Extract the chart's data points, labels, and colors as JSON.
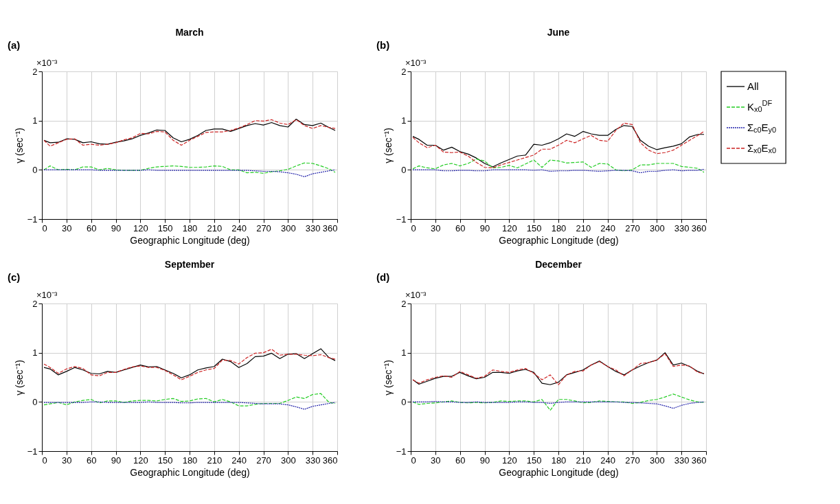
{
  "chart_data": [
    {
      "type": "line",
      "title": "March",
      "xlabel": "Geographic Longitude (deg)",
      "ylabel": "γ (sec⁻¹)",
      "annotations": [
        "(a)",
        "×10⁻³"
      ],
      "xlim": [
        0,
        360
      ],
      "xticks": [
        0,
        30,
        60,
        90,
        120,
        150,
        180,
        210,
        240,
        270,
        300,
        330,
        360
      ],
      "ylim": [
        -1,
        2
      ],
      "yticks": [
        -1,
        0,
        1,
        2
      ],
      "grid": true,
      "x": [
        2.5,
        10,
        20,
        30,
        40,
        50,
        60,
        70,
        80,
        90,
        100,
        110,
        120,
        130,
        140,
        150,
        160,
        170,
        180,
        190,
        200,
        210,
        220,
        230,
        240,
        250,
        260,
        270,
        280,
        290,
        300,
        310,
        320,
        330,
        340,
        350,
        357.5
      ],
      "series": [
        {
          "color": "#000000",
          "line_style": "solid",
          "values": [
            0.6,
            0.55,
            0.56,
            0.63,
            0.62,
            0.55,
            0.57,
            0.53,
            0.52,
            0.56,
            0.59,
            0.63,
            0.7,
            0.75,
            0.81,
            0.8,
            0.65,
            0.57,
            0.62,
            0.7,
            0.8,
            0.83,
            0.83,
            0.78,
            0.84,
            0.9,
            0.94,
            0.91,
            0.96,
            0.9,
            0.87,
            1.03,
            0.92,
            0.9,
            0.95,
            0.86,
            0.8
          ]
        },
        {
          "color": "#22cc22",
          "line_style": "dashed",
          "values": [
            0.0,
            0.08,
            0.0,
            0.01,
            0.0,
            0.06,
            0.06,
            0.0,
            0.03,
            0.0,
            -0.01,
            -0.01,
            -0.01,
            0.03,
            0.06,
            0.07,
            0.08,
            0.07,
            0.05,
            0.05,
            0.06,
            0.08,
            0.07,
            0.0,
            0.0,
            -0.06,
            -0.05,
            -0.07,
            -0.04,
            -0.02,
            0.01,
            0.08,
            0.14,
            0.13,
            0.08,
            0.02,
            -0.05
          ]
        },
        {
          "color": "#2222aa",
          "line_style": "dotted",
          "values": [
            0,
            0,
            0,
            0,
            0,
            0,
            0,
            -0.01,
            -0.01,
            -0.01,
            -0.01,
            -0.01,
            -0.01,
            0,
            -0.01,
            -0.01,
            -0.01,
            -0.01,
            -0.01,
            -0.01,
            -0.01,
            -0.01,
            -0.01,
            -0.01,
            -0.01,
            -0.01,
            -0.02,
            -0.03,
            -0.03,
            -0.04,
            -0.06,
            -0.09,
            -0.14,
            -0.08,
            -0.05,
            -0.02,
            0.0
          ]
        },
        {
          "color": "#cc2222",
          "line_style": "dashed",
          "values": [
            0.6,
            0.48,
            0.55,
            0.62,
            0.63,
            0.5,
            0.52,
            0.5,
            0.52,
            0.55,
            0.61,
            0.65,
            0.74,
            0.73,
            0.78,
            0.77,
            0.6,
            0.5,
            0.6,
            0.68,
            0.76,
            0.77,
            0.77,
            0.8,
            0.85,
            0.92,
            1.0,
            0.99,
            1.02,
            0.95,
            0.92,
            1.02,
            0.9,
            0.84,
            0.9,
            0.86,
            0.84
          ]
        }
      ]
    },
    {
      "type": "line",
      "title": "June",
      "xlabel": "Geographic Longitude (deg)",
      "ylabel": "γ (sec⁻¹)",
      "annotations": [
        "(b)",
        "×10⁻³"
      ],
      "xlim": [
        0,
        360
      ],
      "xticks": [
        0,
        30,
        60,
        90,
        120,
        150,
        180,
        210,
        240,
        270,
        300,
        330,
        360
      ],
      "ylim": [
        -1,
        2
      ],
      "yticks": [
        -1,
        0,
        1,
        2
      ],
      "grid": true,
      "legend": "right",
      "x": [
        2.5,
        10,
        20,
        30,
        40,
        50,
        60,
        70,
        80,
        90,
        100,
        110,
        120,
        130,
        140,
        150,
        160,
        170,
        180,
        190,
        200,
        210,
        220,
        230,
        240,
        250,
        260,
        270,
        280,
        290,
        300,
        310,
        320,
        330,
        340,
        350,
        357.5
      ],
      "series": [
        {
          "name": "All",
          "color": "#000000",
          "line_style": "solid",
          "values": [
            0.68,
            0.62,
            0.5,
            0.5,
            0.4,
            0.46,
            0.37,
            0.32,
            0.24,
            0.13,
            0.06,
            0.14,
            0.21,
            0.28,
            0.3,
            0.52,
            0.5,
            0.55,
            0.63,
            0.73,
            0.68,
            0.78,
            0.73,
            0.7,
            0.7,
            0.82,
            0.9,
            0.88,
            0.6,
            0.48,
            0.41,
            0.45,
            0.48,
            0.53,
            0.67,
            0.72,
            0.72
          ]
        },
        {
          "name": "K$_{x0}$$^{DF}$",
          "color": "#22cc22",
          "line_style": "dashed",
          "values": [
            0.02,
            0.08,
            0.04,
            0.02,
            0.1,
            0.13,
            0.08,
            0.13,
            0.22,
            0.18,
            0.04,
            0.05,
            0.09,
            0.04,
            0.12,
            0.2,
            0.05,
            0.2,
            0.18,
            0.14,
            0.15,
            0.16,
            0.05,
            0.13,
            0.12,
            0.0,
            -0.02,
            0.0,
            0.1,
            0.1,
            0.13,
            0.13,
            0.13,
            0.07,
            0.05,
            0.03,
            -0.05
          ]
        },
        {
          "name": "Σ$_{c0}$E$_{y0}$",
          "color": "#2222aa",
          "line_style": "dotted",
          "values": [
            0,
            0,
            0,
            0,
            -0.02,
            -0.02,
            -0.01,
            -0.01,
            -0.02,
            -0.02,
            0,
            0,
            0,
            0,
            0,
            -0.01,
            0,
            -0.03,
            -0.02,
            -0.02,
            -0.01,
            -0.01,
            -0.02,
            -0.03,
            -0.02,
            -0.01,
            -0.01,
            -0.02,
            -0.06,
            -0.03,
            -0.03,
            -0.01,
            0,
            -0.02,
            -0.01,
            -0.01,
            0.01
          ]
        },
        {
          "name": "Σ$_{x0}$E$_{x0}$",
          "color": "#cc2222",
          "line_style": "dashed",
          "values": [
            0.66,
            0.55,
            0.45,
            0.5,
            0.36,
            0.35,
            0.36,
            0.28,
            0.15,
            0.05,
            0.04,
            0.1,
            0.15,
            0.2,
            0.25,
            0.3,
            0.42,
            0.42,
            0.5,
            0.6,
            0.55,
            0.63,
            0.7,
            0.6,
            0.58,
            0.8,
            0.95,
            0.92,
            0.55,
            0.4,
            0.33,
            0.35,
            0.4,
            0.5,
            0.6,
            0.7,
            0.78
          ]
        }
      ]
    },
    {
      "type": "line",
      "title": "September",
      "xlabel": "Geographic Longitude (deg)",
      "ylabel": "γ (sec⁻¹)",
      "annotations": [
        "(c)",
        "×10⁻³"
      ],
      "xlim": [
        0,
        360
      ],
      "xticks": [
        0,
        30,
        60,
        90,
        120,
        150,
        180,
        210,
        240,
        270,
        300,
        330,
        360
      ],
      "ylim": [
        -1,
        2
      ],
      "yticks": [
        -1,
        0,
        1,
        2
      ],
      "grid": true,
      "x": [
        2.5,
        10,
        20,
        30,
        40,
        50,
        60,
        70,
        80,
        90,
        100,
        110,
        120,
        130,
        140,
        150,
        160,
        170,
        180,
        190,
        200,
        210,
        220,
        230,
        240,
        250,
        260,
        270,
        280,
        290,
        300,
        310,
        320,
        330,
        340,
        350,
        357.5
      ],
      "series": [
        {
          "color": "#000000",
          "line_style": "solid",
          "values": [
            0.7,
            0.67,
            0.55,
            0.62,
            0.7,
            0.65,
            0.58,
            0.57,
            0.62,
            0.6,
            0.65,
            0.7,
            0.75,
            0.71,
            0.72,
            0.65,
            0.58,
            0.49,
            0.55,
            0.65,
            0.69,
            0.72,
            0.87,
            0.82,
            0.7,
            0.78,
            0.92,
            0.93,
            0.99,
            0.88,
            0.97,
            0.98,
            0.88,
            0.98,
            1.08,
            0.9,
            0.84
          ]
        },
        {
          "color": "#22cc22",
          "line_style": "dashed",
          "values": [
            -0.06,
            -0.04,
            -0.01,
            -0.06,
            0.0,
            0.03,
            0.05,
            -0.02,
            0.02,
            0.02,
            -0.01,
            0.02,
            0.03,
            0.03,
            0.02,
            0.05,
            0.07,
            0.01,
            0.02,
            0.06,
            0.07,
            0.0,
            0.05,
            0.0,
            -0.08,
            -0.08,
            -0.05,
            -0.03,
            -0.03,
            -0.03,
            0.03,
            0.1,
            0.07,
            0.15,
            0.17,
            -0.01,
            -0.03
          ]
        },
        {
          "color": "#2222aa",
          "line_style": "dotted",
          "values": [
            -0.01,
            -0.01,
            -0.01,
            -0.01,
            -0.01,
            -0.01,
            0,
            0,
            -0.01,
            -0.01,
            -0.01,
            -0.01,
            -0.01,
            0,
            -0.01,
            -0.01,
            -0.01,
            -0.02,
            -0.02,
            -0.01,
            -0.01,
            -0.01,
            -0.01,
            -0.01,
            -0.01,
            -0.02,
            -0.03,
            -0.04,
            -0.04,
            -0.04,
            -0.06,
            -0.1,
            -0.15,
            -0.09,
            -0.06,
            -0.03,
            -0.01
          ]
        },
        {
          "color": "#cc2222",
          "line_style": "dashed",
          "values": [
            0.77,
            0.7,
            0.58,
            0.67,
            0.72,
            0.68,
            0.55,
            0.53,
            0.6,
            0.6,
            0.66,
            0.71,
            0.73,
            0.7,
            0.7,
            0.64,
            0.55,
            0.45,
            0.52,
            0.6,
            0.65,
            0.68,
            0.85,
            0.84,
            0.77,
            0.9,
            0.99,
            1.0,
            1.07,
            0.95,
            0.97,
            0.97,
            0.95,
            0.94,
            0.96,
            0.9,
            0.87
          ]
        }
      ]
    },
    {
      "type": "line",
      "title": "December",
      "xlabel": "Geographic Longitude (deg)",
      "ylabel": "γ (sec⁻¹)",
      "annotations": [
        "(d)",
        "×10⁻³"
      ],
      "xlim": [
        0,
        360
      ],
      "xticks": [
        0,
        30,
        60,
        90,
        120,
        150,
        180,
        210,
        240,
        270,
        300,
        330,
        360
      ],
      "ylim": [
        -1,
        2
      ],
      "yticks": [
        -1,
        0,
        1,
        2
      ],
      "grid": true,
      "x": [
        2.5,
        10,
        20,
        30,
        40,
        50,
        60,
        70,
        80,
        90,
        100,
        110,
        120,
        130,
        140,
        150,
        160,
        170,
        180,
        190,
        200,
        210,
        220,
        230,
        240,
        250,
        260,
        270,
        280,
        290,
        300,
        310,
        320,
        330,
        340,
        350,
        357.5
      ],
      "series": [
        {
          "color": "#000000",
          "line_style": "solid",
          "values": [
            0.45,
            0.36,
            0.42,
            0.48,
            0.52,
            0.52,
            0.6,
            0.53,
            0.47,
            0.5,
            0.6,
            0.6,
            0.58,
            0.63,
            0.66,
            0.6,
            0.38,
            0.35,
            0.4,
            0.55,
            0.6,
            0.65,
            0.75,
            0.83,
            0.72,
            0.62,
            0.55,
            0.65,
            0.73,
            0.8,
            0.85,
            1.0,
            0.75,
            0.79,
            0.72,
            0.62,
            0.57
          ]
        },
        {
          "color": "#22cc22",
          "line_style": "dashed",
          "values": [
            0.0,
            -0.05,
            -0.03,
            -0.02,
            0.0,
            0.02,
            -0.01,
            -0.02,
            -0.01,
            -0.02,
            -0.01,
            0.02,
            0.01,
            0.02,
            0.02,
            0.0,
            0.05,
            -0.17,
            0.05,
            0.05,
            0.02,
            -0.02,
            -0.01,
            0.02,
            0.01,
            0.0,
            0.0,
            -0.03,
            -0.01,
            0.03,
            0.05,
            0.1,
            0.16,
            0.1,
            0.04,
            0.0,
            -0.01
          ]
        },
        {
          "color": "#2222aa",
          "line_style": "dotted",
          "values": [
            0,
            0,
            0,
            0.01,
            0,
            0,
            -0.01,
            -0.01,
            0,
            -0.01,
            -0.01,
            -0.01,
            -0.01,
            0,
            0,
            -0.01,
            -0.01,
            -0.03,
            -0.01,
            0,
            0,
            0,
            0,
            0,
            0,
            0,
            -0.01,
            -0.01,
            -0.02,
            -0.03,
            -0.04,
            -0.08,
            -0.13,
            -0.07,
            -0.03,
            -0.01,
            0
          ]
        },
        {
          "color": "#cc2222",
          "line_style": "dashed",
          "values": [
            0.45,
            0.38,
            0.45,
            0.5,
            0.53,
            0.5,
            0.62,
            0.55,
            0.48,
            0.52,
            0.65,
            0.62,
            0.6,
            0.65,
            0.68,
            0.58,
            0.45,
            0.55,
            0.35,
            0.55,
            0.62,
            0.63,
            0.75,
            0.82,
            0.72,
            0.65,
            0.53,
            0.65,
            0.78,
            0.8,
            0.85,
            0.98,
            0.72,
            0.75,
            0.73,
            0.6,
            0.58
          ]
        }
      ]
    }
  ]
}
